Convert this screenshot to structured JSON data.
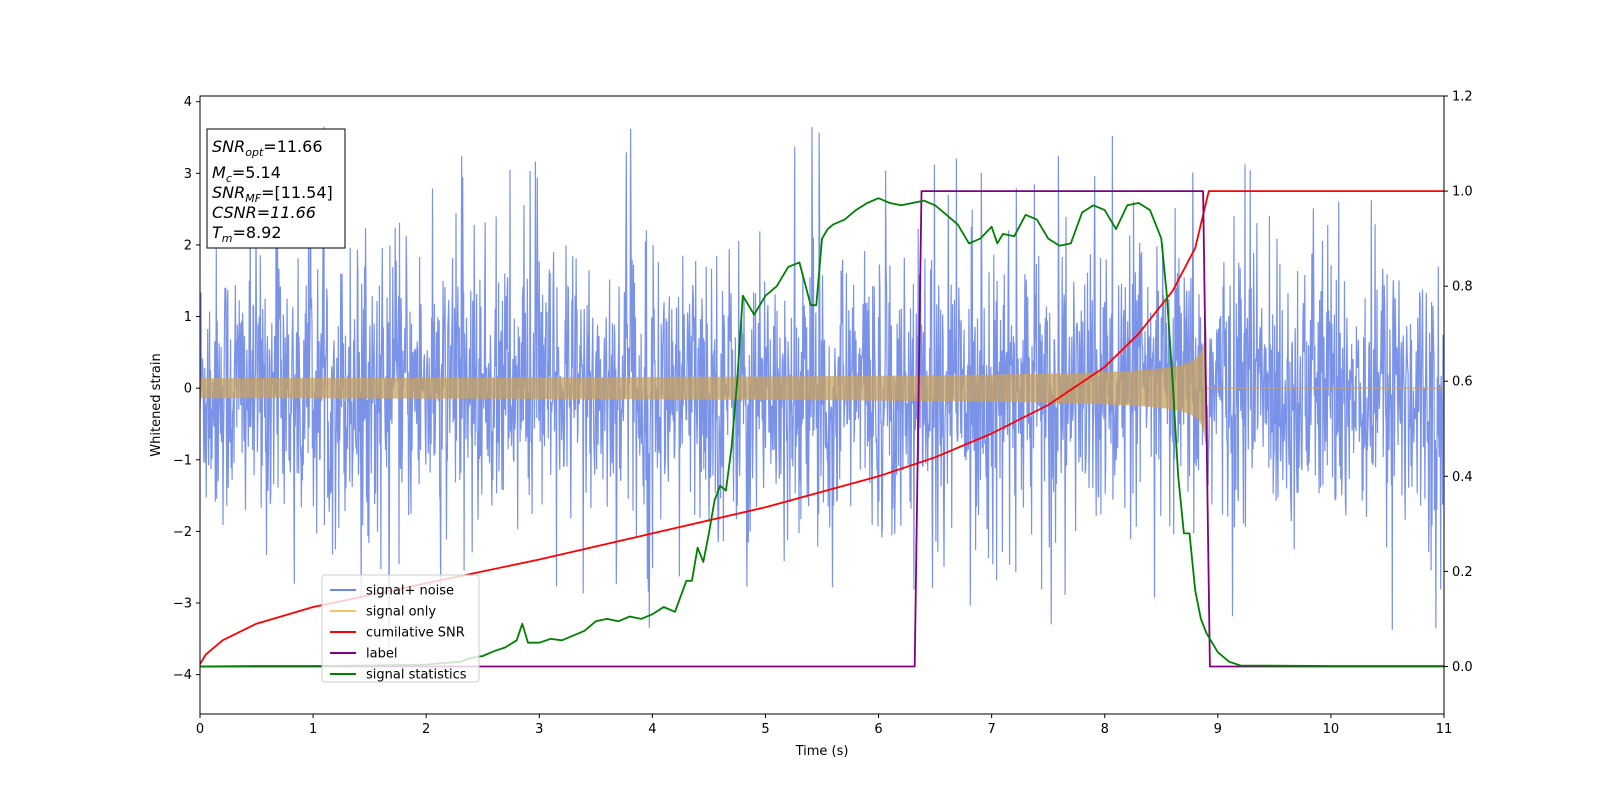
{
  "chart_data": {
    "type": "line",
    "xlabel": "Time (s)",
    "ylabel": "Whitened strain",
    "xlim": [
      0,
      11
    ],
    "ylim": [
      -4.55,
      4.08
    ],
    "y2lim": [
      -0.1,
      1.2
    ],
    "xticks": [
      0,
      1,
      2,
      3,
      4,
      5,
      6,
      7,
      8,
      9,
      10,
      11
    ],
    "yticks": [
      -4,
      -3,
      -2,
      -1,
      0,
      1,
      2,
      3,
      4
    ],
    "y2ticks": [
      0.0,
      0.2,
      0.4,
      0.6,
      0.8,
      1.0,
      1.2
    ],
    "grid": false,
    "legend_position": "lower-left",
    "annotation": {
      "snr_opt": {
        "sym": "SNR",
        "sub": "opt",
        "value": "=11.66"
      },
      "mc": {
        "sym": "M",
        "sub": "c",
        "value": "=5.14"
      },
      "snr_mf": {
        "sym": "SNR",
        "sub": "MF",
        "value": "=[11.54]"
      },
      "csnr": {
        "text": "CSNR=11.66"
      },
      "tm": {
        "sym": "T",
        "sub": "m",
        "value": "=8.92"
      }
    },
    "series": [
      {
        "name": "signal+ noise",
        "color": "#6b87e6",
        "axis": "left",
        "envelope": {
          "typical": 1.6,
          "max_peak": 3.65,
          "min_peak": -4.15
        }
      },
      {
        "name": "signal only",
        "color": "#f5c16c",
        "axis": "left",
        "chirp": {
          "t_merge": 8.9,
          "amp_start": 0.07,
          "amp_end": 1.15
        }
      },
      {
        "name": "cumilative SNR",
        "color": "#ff0000",
        "axis": "right",
        "x": [
          0,
          0.05,
          0.2,
          0.5,
          1,
          2,
          3,
          4,
          5,
          6,
          6.5,
          7,
          7.5,
          8,
          8.3,
          8.6,
          8.8,
          8.92,
          11
        ],
        "y": [
          0.005,
          0.025,
          0.055,
          0.09,
          0.125,
          0.175,
          0.225,
          0.28,
          0.335,
          0.4,
          0.44,
          0.49,
          0.55,
          0.63,
          0.7,
          0.79,
          0.88,
          1.0,
          1.0
        ]
      },
      {
        "name": "label",
        "color": "#800080",
        "axis": "right",
        "x": [
          0,
          6.32,
          6.38,
          8.87,
          8.93,
          11
        ],
        "y": [
          0,
          0,
          1,
          1,
          0,
          0
        ]
      },
      {
        "name": "signal statistics",
        "color": "#008000",
        "axis": "right",
        "x": [
          0,
          0.5,
          1,
          1.5,
          2,
          2.3,
          2.4,
          2.5,
          2.6,
          2.7,
          2.8,
          2.85,
          2.9,
          3.0,
          3.1,
          3.2,
          3.3,
          3.4,
          3.5,
          3.6,
          3.7,
          3.8,
          3.9,
          4.0,
          4.1,
          4.2,
          4.3,
          4.35,
          4.4,
          4.45,
          4.5,
          4.55,
          4.6,
          4.65,
          4.7,
          4.75,
          4.8,
          4.85,
          4.9,
          5.0,
          5.1,
          5.2,
          5.3,
          5.4,
          5.45,
          5.5,
          5.55,
          5.6,
          5.7,
          5.8,
          5.9,
          6.0,
          6.1,
          6.2,
          6.3,
          6.4,
          6.5,
          6.6,
          6.7,
          6.8,
          6.9,
          7.0,
          7.05,
          7.1,
          7.2,
          7.3,
          7.4,
          7.5,
          7.6,
          7.7,
          7.8,
          7.9,
          8.0,
          8.1,
          8.2,
          8.3,
          8.4,
          8.5,
          8.55,
          8.6,
          8.65,
          8.7,
          8.75,
          8.8,
          8.85,
          8.9,
          9.0,
          9.1,
          9.2,
          10,
          11
        ],
        "y": [
          0,
          0.001,
          0.001,
          0.002,
          0.004,
          0.01,
          0.018,
          0.022,
          0.032,
          0.04,
          0.055,
          0.09,
          0.05,
          0.05,
          0.058,
          0.055,
          0.065,
          0.075,
          0.095,
          0.1,
          0.095,
          0.105,
          0.1,
          0.11,
          0.125,
          0.115,
          0.18,
          0.18,
          0.25,
          0.22,
          0.28,
          0.35,
          0.38,
          0.37,
          0.46,
          0.6,
          0.78,
          0.76,
          0.74,
          0.78,
          0.8,
          0.84,
          0.85,
          0.76,
          0.76,
          0.9,
          0.92,
          0.93,
          0.94,
          0.96,
          0.975,
          0.985,
          0.975,
          0.97,
          0.975,
          0.98,
          0.97,
          0.95,
          0.93,
          0.89,
          0.9,
          0.925,
          0.89,
          0.91,
          0.905,
          0.95,
          0.94,
          0.9,
          0.885,
          0.89,
          0.955,
          0.97,
          0.96,
          0.92,
          0.97,
          0.975,
          0.96,
          0.9,
          0.78,
          0.6,
          0.4,
          0.28,
          0.28,
          0.16,
          0.1,
          0.07,
          0.03,
          0.01,
          0.002,
          0.001,
          0.001
        ]
      }
    ]
  }
}
